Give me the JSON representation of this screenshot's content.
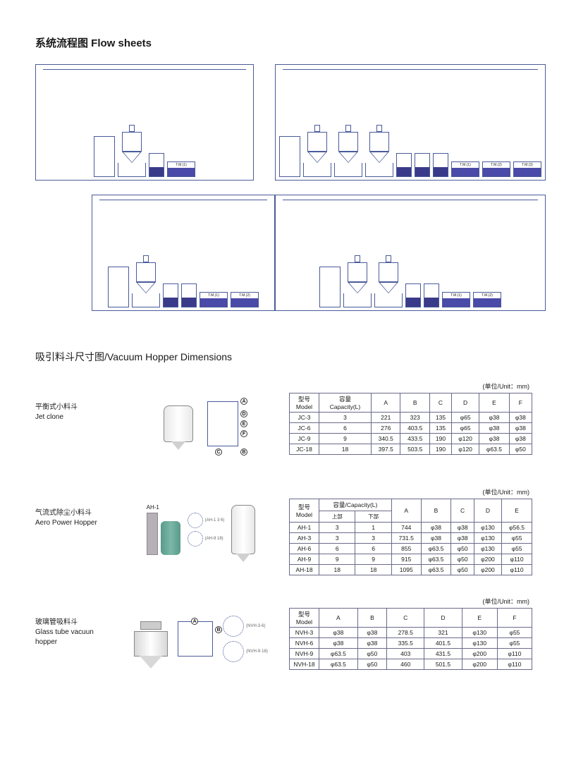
{
  "flow": {
    "title": "系统流程图 Flow sheets",
    "tm_labels": [
      "T.M.(1)",
      "T.M.",
      "T.M.(1)",
      "T.M.(2)",
      "T.M.(1)",
      "T.M.(2)",
      "T.M.(3)"
    ]
  },
  "dim": {
    "title": "吸引料斗尺寸图/Vacuum Hopper Dimensions",
    "unit_label": "(单位/Unit：mm)"
  },
  "jet": {
    "label_cn": "平衡式小料斗",
    "label_en": "Jet clone",
    "headers": {
      "model": "型号\nModel",
      "capacity": "容量\nCapacity(L)",
      "a": "A",
      "b": "B",
      "c": "C",
      "d": "D",
      "e": "E",
      "f": "F"
    },
    "rows": [
      {
        "model": "JC-3",
        "cap": "3",
        "a": "221",
        "b": "323",
        "c": "135",
        "d": "φ65",
        "e": "φ38",
        "f": "φ38"
      },
      {
        "model": "JC-6",
        "cap": "6",
        "a": "276",
        "b": "403.5",
        "c": "135",
        "d": "φ65",
        "e": "φ38",
        "f": "φ38"
      },
      {
        "model": "JC-9",
        "cap": "9",
        "a": "340.5",
        "b": "433.5",
        "c": "190",
        "d": "φ120",
        "e": "φ38",
        "f": "φ38"
      },
      {
        "model": "JC-18",
        "cap": "18",
        "a": "397.5",
        "b": "503.5",
        "c": "190",
        "d": "φ120",
        "e": "φ63.5",
        "f": "φ50"
      }
    ]
  },
  "aero": {
    "label_cn": "气流式除尘小料斗",
    "label_en": "Aero Power Hopper",
    "ah_label": "AH-1",
    "sub1": "(AH-1 3 6)",
    "sub2": "(AH-9 18)",
    "headers": {
      "model": "型号\nModel",
      "capacity": "容量/Capacity(L)",
      "up": "上部",
      "down": "下部",
      "a": "A",
      "b": "B",
      "c": "C",
      "d": "D",
      "e": "E"
    },
    "rows": [
      {
        "model": "AH-1",
        "u": "3",
        "d": "1",
        "a": "744",
        "b": "φ38",
        "c": "φ38",
        "dd": "φ130",
        "e": "φ56.5"
      },
      {
        "model": "AH-3",
        "u": "3",
        "d": "3",
        "a": "731.5",
        "b": "φ38",
        "c": "φ38",
        "dd": "φ130",
        "e": "φ55"
      },
      {
        "model": "AH-6",
        "u": "6",
        "d": "6",
        "a": "855",
        "b": "φ63.5",
        "c": "φ50",
        "dd": "φ130",
        "e": "φ55"
      },
      {
        "model": "AH-9",
        "u": "9",
        "d": "9",
        "a": "915",
        "b": "φ63.5",
        "c": "φ50",
        "dd": "φ200",
        "e": "φ110"
      },
      {
        "model": "AH-18",
        "u": "18",
        "d": "18",
        "a": "1095",
        "b": "φ63.5",
        "c": "φ50",
        "dd": "φ200",
        "e": "φ110"
      }
    ]
  },
  "glass": {
    "label_cn": "玻璃管吸料斗",
    "label_en": "Glass tube vacuun hopper",
    "sub1": "(NVH-3·6)",
    "sub2": "(NVH-9·18)",
    "headers": {
      "model": "型号\nModel",
      "a": "A",
      "b": "B",
      "c": "C",
      "d": "D",
      "e": "E",
      "f": "F"
    },
    "rows": [
      {
        "model": "NVH-3",
        "a": "φ38",
        "b": "φ38",
        "c": "278.5",
        "d": "321",
        "e": "φ130",
        "f": "φ55"
      },
      {
        "model": "NVH-6",
        "a": "φ38",
        "b": "φ38",
        "c": "335.5",
        "d": "401.5",
        "e": "φ130",
        "f": "φ55"
      },
      {
        "model": "NVH-9",
        "a": "φ63.5",
        "b": "φ50",
        "c": "403",
        "d": "431.5",
        "e": "φ200",
        "f": "φ110"
      },
      {
        "model": "NVH-18",
        "a": "φ63.5",
        "b": "φ50",
        "c": "460",
        "d": "501.5",
        "e": "φ200",
        "f": "φ110"
      }
    ]
  }
}
